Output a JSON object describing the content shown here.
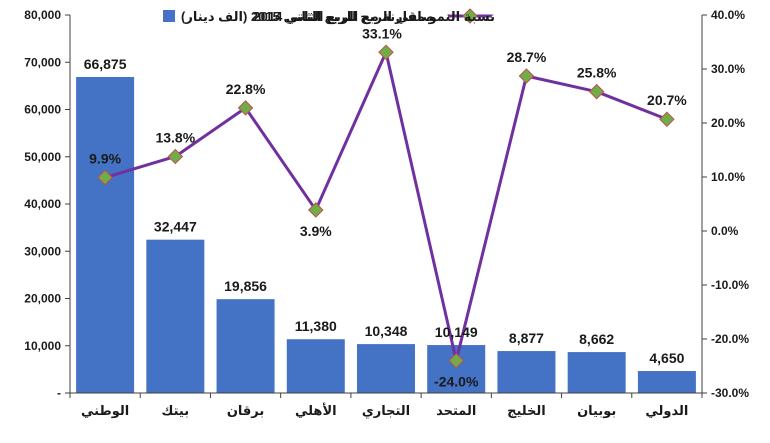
{
  "chart_data": {
    "type": "bar",
    "categories": [
      "الوطني",
      "بيتك",
      "برقان",
      "الأهلي",
      "التجاري",
      "المتحد",
      "الخليج",
      "بوبيان",
      "الدولي"
    ],
    "series": [
      {
        "name": "صافي الربح للربع الثاني 2015 (الف دينار)",
        "type": "bar",
        "axis": "left",
        "color": "#4472C4",
        "values": [
          66875,
          32447,
          19856,
          11380,
          10348,
          10149,
          8877,
          8662,
          4650
        ],
        "labels": [
          "66,875",
          "32,447",
          "19,856",
          "11,380",
          "10,348",
          "10,149",
          "8,877",
          "8,662",
          "4,650"
        ]
      },
      {
        "name": "نسبة النمو مقارنة مع الربع الثاني 2014",
        "type": "line",
        "axis": "right",
        "color": "#7030A0",
        "marker_color": "#70AD47",
        "values": [
          9.9,
          13.8,
          22.8,
          3.9,
          33.1,
          -24.0,
          28.7,
          25.8,
          20.7
        ],
        "labels": [
          "9.9%",
          "13.8%",
          "22.8%",
          "3.9%",
          "33.1%",
          "-24.0%",
          "28.7%",
          "25.8%",
          "20.7%"
        ]
      }
    ],
    "left_axis": {
      "ylim": [
        0,
        80000
      ],
      "ticks": [
        0,
        10000,
        20000,
        30000,
        40000,
        50000,
        60000,
        70000,
        80000
      ],
      "tick_labels": [
        "-",
        "10,000",
        "20,000",
        "30,000",
        "40,000",
        "50,000",
        "60,000",
        "70,000",
        "80,000"
      ]
    },
    "right_axis": {
      "ylim": [
        -30,
        40
      ],
      "ticks": [
        -30,
        -20,
        -10,
        0,
        10,
        20,
        30,
        40
      ],
      "tick_labels": [
        "-30.0%",
        "-20.0%",
        "-10.0%",
        "0.0%",
        "10.0%",
        "20.0%",
        "30.0%",
        "40.0%"
      ]
    },
    "grid": false,
    "legend_position": "top"
  }
}
